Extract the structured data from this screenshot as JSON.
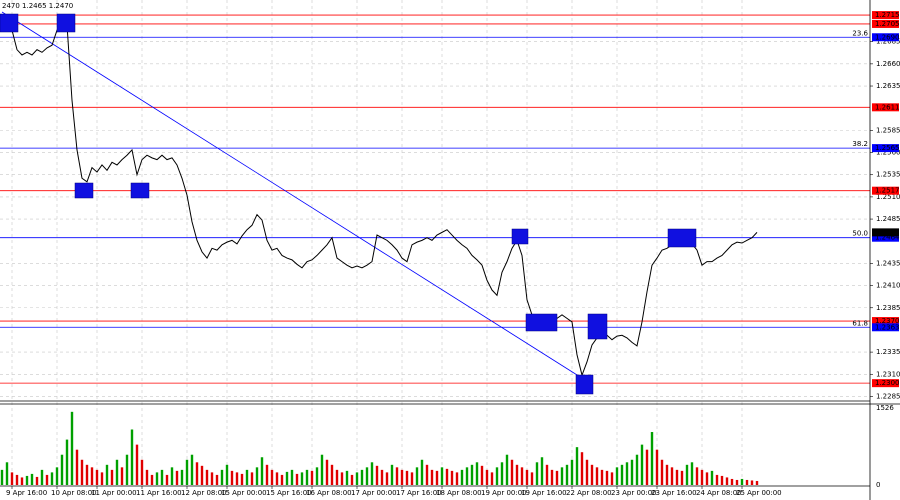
{
  "chart_data": {
    "type": "line",
    "info": "2470 1.2465 1.2470",
    "color": "#000000",
    "grid": true,
    "ylim": [
      1.2281,
      1.2732
    ],
    "yticks": [
      1.2685,
      {
        "value": 1.266,
        "label": "1.2660"
      },
      1.2635,
      1.2585,
      {
        "value": 1.256,
        "label": "1.2560"
      },
      1.2535,
      {
        "value": 1.251,
        "label": "1.2510"
      },
      1.2485,
      1.2435,
      {
        "value": 1.241,
        "label": "1.2410"
      },
      1.2385,
      1.2335,
      {
        "value": 1.231,
        "label": "1.2310"
      },
      1.2285
    ],
    "categories": [
      null,
      null,
      "9 Apr 16:00",
      null,
      null,
      null,
      null,
      null,
      null,
      null,
      null,
      "10 Apr 08:00",
      null,
      null,
      null,
      null,
      null,
      null,
      null,
      "11 Apr 00:00",
      null,
      null,
      null,
      null,
      null,
      null,
      null,
      null,
      "11 Apr 16:00",
      null,
      null,
      null,
      null,
      null,
      null,
      null,
      null,
      "12 Apr 08:00",
      null,
      null,
      null,
      null,
      null,
      null,
      null,
      "15 Apr 00:00",
      null,
      null,
      null,
      null,
      null,
      null,
      null,
      null,
      "15 Apr 16:00",
      null,
      null,
      null,
      null,
      null,
      null,
      null,
      "16 Apr 08:00",
      null,
      null,
      null,
      null,
      null,
      null,
      null,
      null,
      "17 Apr 00:00",
      null,
      null,
      null,
      null,
      null,
      null,
      null,
      null,
      "17 Apr 16:00",
      null,
      null,
      null,
      null,
      null,
      null,
      null,
      "18 Apr 08:00",
      null,
      null,
      null,
      null,
      null,
      null,
      null,
      null,
      "19 Apr 00:00",
      null,
      null,
      null,
      null,
      null,
      null,
      null,
      "19 Apr 16:00",
      null,
      null,
      null,
      null,
      null,
      null,
      null,
      null,
      "22 Apr 08:00",
      null,
      null,
      null,
      null,
      null,
      null,
      null,
      null,
      "23 Apr 00:00",
      null,
      null,
      null,
      null,
      null,
      null,
      null,
      "23 Apr 16:00",
      null,
      null,
      null,
      null,
      null,
      null,
      null,
      null,
      "24 Apr 08:00",
      null,
      null,
      null,
      null,
      null,
      null,
      null,
      "25 Apr 00:00",
      null,
      null,
      null
    ],
    "values": [
      1.2709,
      1.2704,
      1.2698,
      1.2676,
      1.267,
      1.2673,
      1.267,
      1.2676,
      1.2673,
      1.2678,
      1.2681,
      1.2698,
      1.2707,
      1.2704,
      1.2619,
      1.2563,
      1.2531,
      1.2527,
      1.2543,
      1.2538,
      1.2546,
      1.254,
      1.2549,
      1.2546,
      1.2552,
      1.2557,
      1.2563,
      1.2535,
      1.2552,
      1.2557,
      1.2554,
      1.2552,
      1.2557,
      1.2552,
      1.2554,
      1.2546,
      1.2531,
      1.2512,
      1.2482,
      1.2461,
      1.2448,
      1.2441,
      1.2452,
      1.245,
      1.2456,
      1.2459,
      1.2461,
      1.2457,
      1.2466,
      1.2473,
      1.2478,
      1.249,
      1.2484,
      1.2461,
      1.245,
      1.2452,
      1.2444,
      1.2441,
      1.2439,
      1.2434,
      1.243,
      1.2437,
      1.2439,
      1.2444,
      1.245,
      1.2456,
      1.2464,
      1.2441,
      1.2437,
      1.2433,
      1.243,
      1.2432,
      1.243,
      1.2433,
      1.2437,
      1.2467,
      1.2464,
      1.2461,
      1.2456,
      1.245,
      1.2441,
      1.2437,
      1.2456,
      1.2459,
      1.2461,
      1.2464,
      1.2461,
      1.2467,
      1.247,
      1.2473,
      1.2467,
      1.2461,
      1.2456,
      1.2452,
      1.2444,
      1.2439,
      1.2433,
      1.2416,
      1.2405,
      1.2399,
      1.2425,
      1.2437,
      1.2452,
      1.2461,
      1.2444,
      1.2394,
      1.2377,
      1.2369,
      1.2365,
      1.2371,
      1.2369,
      1.2373,
      1.2377,
      1.2373,
      1.2369,
      1.2332,
      1.2309,
      1.2324,
      1.2343,
      1.2351,
      1.2358,
      1.2354,
      1.2349,
      1.2353,
      1.2354,
      1.2351,
      1.2346,
      1.2342,
      1.2369,
      1.2403,
      1.2433,
      1.2441,
      1.245,
      1.2452,
      1.2456,
      1.2458,
      1.2456,
      1.2459,
      1.2457,
      1.245,
      1.2433,
      1.2437,
      1.2437,
      1.2441,
      1.2444,
      1.245,
      1.2456,
      1.2459,
      1.2458,
      1.2461,
      1.2464,
      1.247
    ],
    "levels": [
      {
        "value": 1.2715,
        "label": "1.2715",
        "color": "#ff0000"
      },
      {
        "value": 1.2705,
        "label": "1.2705",
        "color": "#ff0000"
      },
      {
        "value": 1.269,
        "label": "1.2690",
        "color": "#0000ff",
        "fib": "23.6"
      },
      {
        "value": 1.2611,
        "label": "1.2611",
        "color": "#ff0000"
      },
      {
        "value": 1.2565,
        "label": "1.2565",
        "color": "#0000ff",
        "fib": "38.2"
      },
      {
        "value": 1.2517,
        "label": "1.2517",
        "color": "#ff0000"
      },
      {
        "value": 1.2464,
        "label": "1.2464",
        "color": "#0000ff",
        "fib": "50.0"
      },
      {
        "value": 1.237,
        "label": "1.2370",
        "color": "#ff0000"
      },
      {
        "value": 1.2363,
        "label": "1.2363",
        "color": "#0000ff",
        "fib": "61.8"
      },
      {
        "value": 1.23,
        "label": "1.2300",
        "color": "#ff0000"
      }
    ],
    "last": {
      "value": 1.247,
      "label": "1.2470"
    },
    "volume": {
      "ylim": [
        0,
        1526
      ],
      "yticks": [
        0,
        1526
      ],
      "up_color": "#00a000",
      "down_color": "#e00000",
      "values": [
        300,
        450,
        250,
        200,
        150,
        180,
        220,
        160,
        300,
        200,
        250,
        350,
        600,
        900,
        1450,
        700,
        500,
        400,
        350,
        300,
        250,
        400,
        300,
        500,
        350,
        600,
        1100,
        800,
        500,
        300,
        200,
        250,
        300,
        200,
        350,
        280,
        300,
        500,
        600,
        450,
        380,
        300,
        250,
        200,
        300,
        400,
        280,
        250,
        220,
        300,
        250,
        350,
        550,
        400,
        300,
        250,
        200,
        260,
        300,
        220,
        250,
        300,
        280,
        350,
        600,
        500,
        400,
        300,
        250,
        280,
        200,
        250,
        300,
        350,
        450,
        380,
        300,
        250,
        400,
        350,
        300,
        280,
        250,
        350,
        500,
        400,
        300,
        280,
        350,
        320,
        280,
        250,
        300,
        350,
        400,
        450,
        380,
        300,
        250,
        350,
        450,
        600,
        500,
        400,
        350,
        300,
        250,
        450,
        550,
        400,
        300,
        280,
        350,
        400,
        500,
        750,
        650,
        500,
        400,
        350,
        300,
        280,
        250,
        350,
        400,
        450,
        500,
        600,
        800,
        700,
        1050,
        700,
        500,
        400,
        350,
        300,
        280,
        400,
        450,
        350,
        300,
        250,
        280,
        200,
        180,
        150,
        120,
        100,
        120,
        100,
        90,
        80
      ]
    }
  }
}
